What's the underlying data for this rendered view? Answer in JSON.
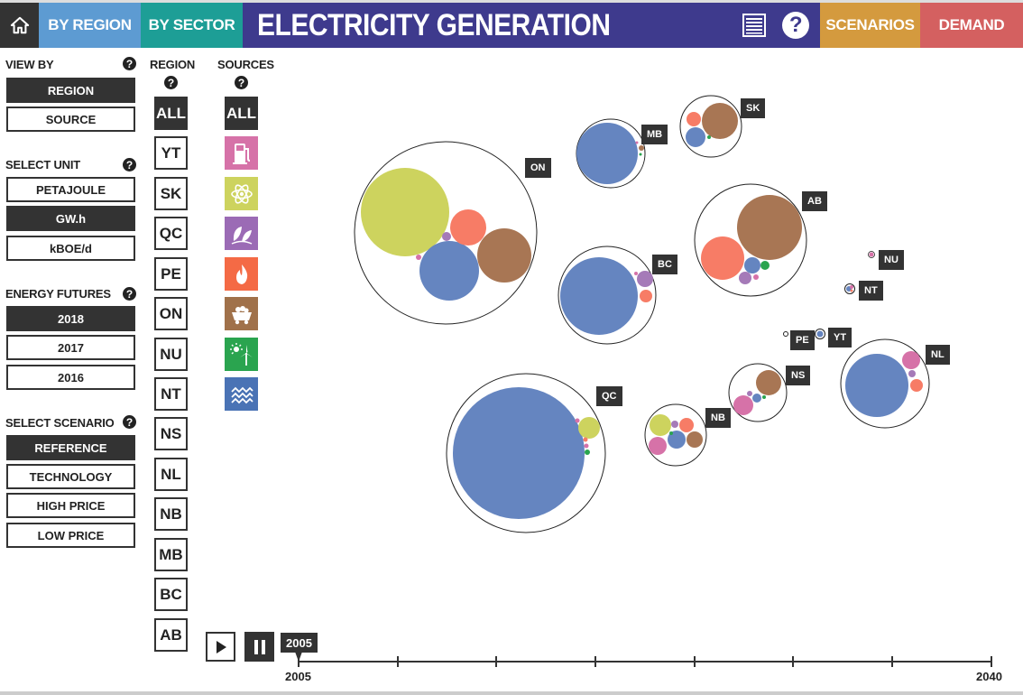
{
  "header": {
    "home_icon": "home-icon",
    "by_region": "BY REGION",
    "by_sector": "BY SECTOR",
    "title": "ELECTRICITY GENERATION",
    "menu_icon": "menu-icon",
    "help_icon": "help-icon",
    "help_glyph": "?",
    "scenarios": "SCENARIOS",
    "demand": "DEMAND",
    "colors": {
      "home": "#333333",
      "region": "#5d9bd2",
      "sector": "#1d9e96",
      "title": "#3e3a8d",
      "scenarios": "#d49a3e",
      "demand": "#d46060"
    }
  },
  "sidebar": {
    "view_by": {
      "label": "VIEW BY",
      "options": [
        "REGION",
        "SOURCE"
      ],
      "selected": "REGION"
    },
    "unit": {
      "label": "SELECT UNIT",
      "options": [
        "PETAJOULE",
        "GW.h",
        "kBOE/d"
      ],
      "selected": "GW.h"
    },
    "futures": {
      "label": "ENERGY FUTURES",
      "options": [
        "2018",
        "2017",
        "2016"
      ],
      "selected": "2018"
    },
    "scenario": {
      "label": "SELECT SCENARIO",
      "options": [
        "REFERENCE",
        "TECHNOLOGY",
        "HIGH PRICE",
        "LOW PRICE"
      ],
      "selected": "REFERENCE"
    },
    "help_glyph": "?"
  },
  "region_filter": {
    "label": "REGION",
    "items": [
      "ALL",
      "YT",
      "SK",
      "QC",
      "PE",
      "ON",
      "NU",
      "NT",
      "NS",
      "NL",
      "NB",
      "MB",
      "BC",
      "AB"
    ],
    "selected": "ALL"
  },
  "sources_filter": {
    "label": "SOURCES",
    "all": "ALL",
    "items": [
      {
        "name": "oil",
        "icon": "fuel-pump-icon",
        "color": "#d672a8"
      },
      {
        "name": "nuclear",
        "icon": "atom-icon",
        "color": "#cdd35e"
      },
      {
        "name": "biomass",
        "icon": "leaf-icon",
        "color": "#9b6bb5"
      },
      {
        "name": "gas",
        "icon": "flame-icon",
        "color": "#f46a45"
      },
      {
        "name": "coal",
        "icon": "coal-cart-icon",
        "color": "#a0714a"
      },
      {
        "name": "solar_wind",
        "icon": "solar-wind-icon",
        "color": "#2aa44f"
      },
      {
        "name": "hydro",
        "icon": "water-waves-icon",
        "color": "#4a73b5"
      }
    ]
  },
  "regions": [
    {
      "id": "ON",
      "label": "ON"
    },
    {
      "id": "QC",
      "label": "QC"
    },
    {
      "id": "MB",
      "label": "MB"
    },
    {
      "id": "SK",
      "label": "SK"
    },
    {
      "id": "AB",
      "label": "AB"
    },
    {
      "id": "BC",
      "label": "BC"
    },
    {
      "id": "NU",
      "label": "NU"
    },
    {
      "id": "NT",
      "label": "NT"
    },
    {
      "id": "PE",
      "label": "PE"
    },
    {
      "id": "YT",
      "label": "YT"
    },
    {
      "id": "NS",
      "label": "NS"
    },
    {
      "id": "NB",
      "label": "NB"
    },
    {
      "id": "NL",
      "label": "NL"
    }
  ],
  "timeline": {
    "play_icon": "play-icon",
    "pause_icon": "pause-icon",
    "current_year": "2005",
    "start": "2005",
    "end": "2040"
  }
}
